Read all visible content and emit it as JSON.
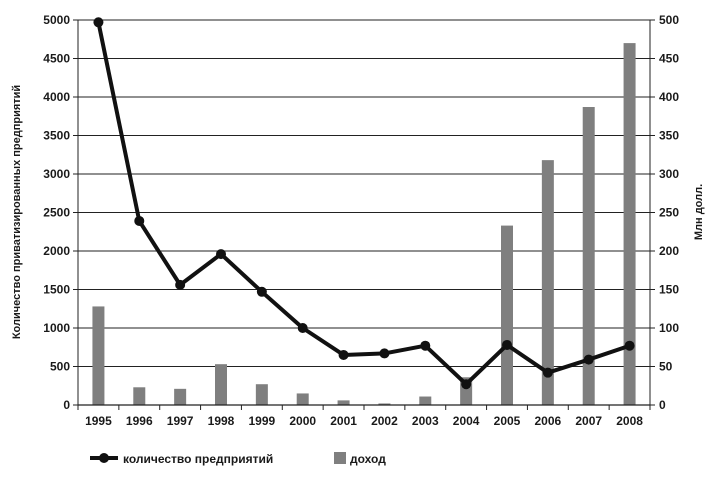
{
  "chart_data": {
    "type": "bar+line",
    "categories": [
      "1995",
      "1996",
      "1997",
      "1998",
      "1999",
      "2000",
      "2001",
      "2002",
      "2003",
      "2004",
      "2005",
      "2006",
      "2007",
      "2008"
    ],
    "series": [
      {
        "name": "количество предприятий",
        "type": "line",
        "axis": "left",
        "color": "#111111",
        "values": [
          4970,
          2390,
          1560,
          1960,
          1470,
          1000,
          650,
          670,
          770,
          270,
          780,
          420,
          590,
          770
        ]
      },
      {
        "name": "доход",
        "type": "bar",
        "axis": "right",
        "color": "#7f7f7f",
        "values": [
          128,
          23,
          21,
          53,
          27,
          15,
          6,
          2,
          11,
          36,
          233,
          318,
          387,
          470
        ]
      }
    ],
    "ylabel_left": "Количество приватизированных предприятий",
    "ylabel_right": "Млн долл.",
    "ylim_left": [
      0,
      5000
    ],
    "yticks_left": [
      0,
      500,
      1000,
      1500,
      2000,
      2500,
      3000,
      3500,
      4000,
      4500,
      5000
    ],
    "ylim_right": [
      0,
      500
    ],
    "yticks_right": [
      0,
      50,
      100,
      150,
      200,
      250,
      300,
      350,
      400,
      450,
      500
    ],
    "grid": "horizontal",
    "legend_position": "bottom"
  }
}
